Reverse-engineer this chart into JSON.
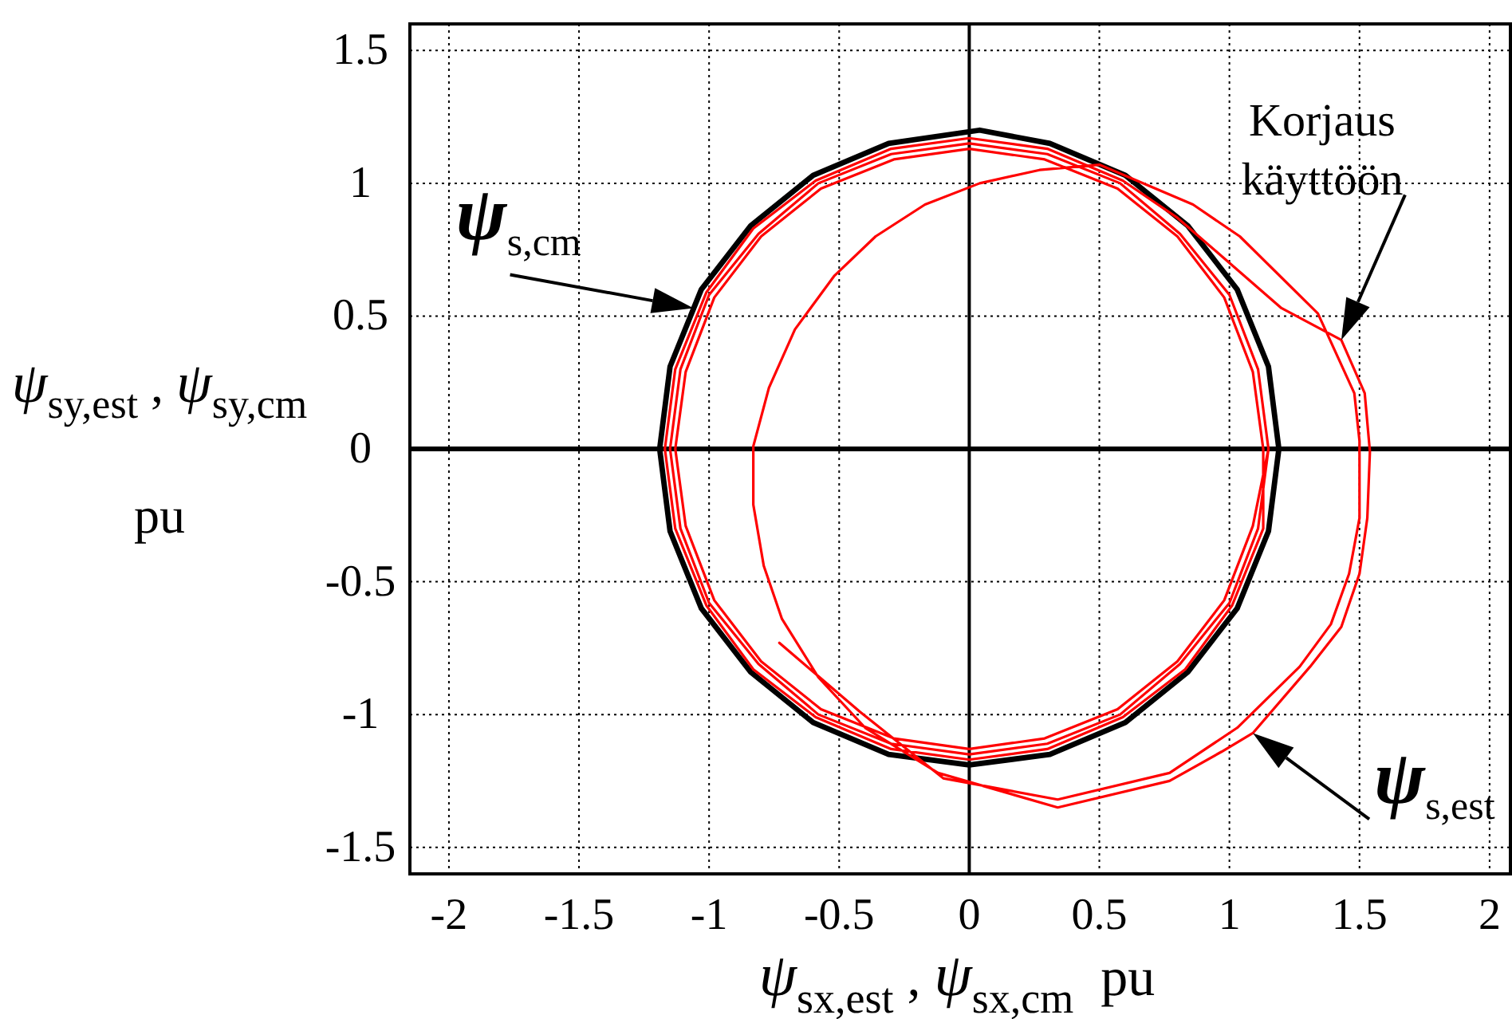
{
  "chart_data": {
    "type": "line",
    "xlabel": "ψ$_{sx,est}$ , ψ$_{sx,cm}$  pu",
    "ylabel": "ψ$_{sy,est}$ , ψ$_{sy,cm}$\npu",
    "xlim": [
      -2.15,
      2.08
    ],
    "ylim": [
      -1.6,
      1.6
    ],
    "xticks": [
      -2,
      -1.5,
      -1,
      -0.5,
      0,
      0.5,
      1,
      1.5,
      2
    ],
    "yticks": [
      -1.5,
      -1,
      -0.5,
      0,
      0.5,
      1,
      1.5
    ],
    "grid": true,
    "ref_lines": [
      {
        "axis": "y",
        "value": 0,
        "color": "#000000"
      },
      {
        "axis": "x",
        "value": 0,
        "color": "#000000"
      }
    ],
    "annotations": [
      {
        "text": "ψ$_{s,cm}$",
        "x": -1.06,
        "y": 0.53
      },
      {
        "text": "Korjaus\nkäyttöön",
        "x": 1.43,
        "y": 0.41
      },
      {
        "text": "ψ$_{s,est}$",
        "x": 1.09,
        "y": -1.07
      }
    ],
    "series": [
      {
        "color": "#000000",
        "x": [
          1.19,
          1.15,
          1.03,
          0.84,
          0.6,
          0.31,
          0.04,
          -0.31,
          -0.6,
          -0.84,
          -1.03,
          -1.15,
          -1.19,
          -1.15,
          -1.03,
          -0.84,
          -0.6,
          -0.31,
          0,
          0.31,
          0.6,
          0.84,
          1.03,
          1.15,
          1.19,
          1.15
        ],
        "values": [
          0,
          0.31,
          0.6,
          0.84,
          1.03,
          1.15,
          1.2,
          1.15,
          1.03,
          0.84,
          0.6,
          0.31,
          0,
          -0.31,
          -0.6,
          -0.84,
          -1.03,
          -1.15,
          -1.19,
          -1.15,
          -1.03,
          -0.84,
          -0.6,
          -0.31,
          0,
          0.31
        ]
      },
      {
        "color": "#ff0000",
        "x": [
          -0.73,
          -0.42,
          -0.1,
          0.34,
          0.77,
          1.03,
          1.27,
          1.39,
          1.46,
          1.5,
          1.5,
          1.48,
          1.34,
          1.04,
          0.86,
          0.5,
          0.27,
          0.04,
          -0.17,
          -0.36,
          -0.52,
          -0.67,
          -0.77,
          -0.83,
          -0.83,
          -0.79,
          -0.72,
          -0.58,
          -0.4,
          -0.12,
          0.34,
          0.77,
          0.97,
          1.09,
          1.31,
          1.43,
          1.5,
          1.53,
          1.54,
          1.52,
          1.43,
          1.2,
          0.8,
          0.59,
          0.3,
          0,
          -0.3,
          -0.59,
          -0.83,
          -1.01,
          -1.13,
          -1.17,
          -1.13,
          -1.01,
          -0.83,
          -0.59,
          -0.3,
          0,
          0.3,
          0.59,
          0.83,
          1.01,
          1.13,
          1.13,
          1.09,
          0.98,
          0.8,
          0.57,
          0.29,
          0,
          -0.29,
          -0.57,
          -0.8,
          -0.98,
          -1.09,
          -1.13,
          -1.09,
          -0.98,
          -0.8,
          -0.57,
          -0.29,
          0,
          0.29,
          0.57,
          0.8,
          0.98,
          1.09,
          1.15,
          1.11,
          1,
          0.81,
          0.58,
          0.3,
          0,
          -0.3,
          -0.58,
          -0.81,
          -1,
          -1.11,
          -1.15,
          -1.11,
          -1,
          -0.81,
          -0.58,
          -0.3,
          0,
          0.3,
          0.58,
          0.81,
          1,
          1.11,
          1.15
        ],
        "values": [
          -0.73,
          -0.99,
          -1.24,
          -1.32,
          -1.22,
          -1.05,
          -0.82,
          -0.66,
          -0.47,
          -0.26,
          0.03,
          0.21,
          0.51,
          0.8,
          0.92,
          1.07,
          1.05,
          1,
          0.92,
          0.8,
          0.65,
          0.45,
          0.23,
          0.01,
          -0.21,
          -0.44,
          -0.64,
          -0.86,
          -1.05,
          -1.22,
          -1.35,
          -1.25,
          -1.14,
          -1.07,
          -0.82,
          -0.67,
          -0.47,
          -0.26,
          -0.01,
          0.21,
          0.41,
          0.53,
          0.87,
          1.01,
          1.13,
          1.17,
          1.13,
          1.01,
          0.83,
          0.59,
          0.3,
          0,
          -0.3,
          -0.59,
          -0.83,
          -1.01,
          -1.13,
          -1.17,
          -1.13,
          -1.01,
          -0.83,
          -0.59,
          -0.3,
          0,
          0.29,
          0.57,
          0.8,
          0.98,
          1.09,
          1.13,
          1.09,
          0.98,
          0.8,
          0.57,
          0.29,
          0,
          -0.29,
          -0.57,
          -0.8,
          -0.98,
          -1.09,
          -1.13,
          -1.09,
          -0.98,
          -0.8,
          -0.57,
          -0.29,
          0,
          0.3,
          0.58,
          0.81,
          1,
          1.11,
          1.15,
          1.11,
          1,
          0.81,
          0.58,
          0.3,
          0,
          -0.3,
          -0.58,
          -0.81,
          -1,
          -1.11,
          -1.15,
          -1.11,
          -1,
          -0.81,
          -0.58,
          -0.3,
          0
        ]
      }
    ]
  }
}
